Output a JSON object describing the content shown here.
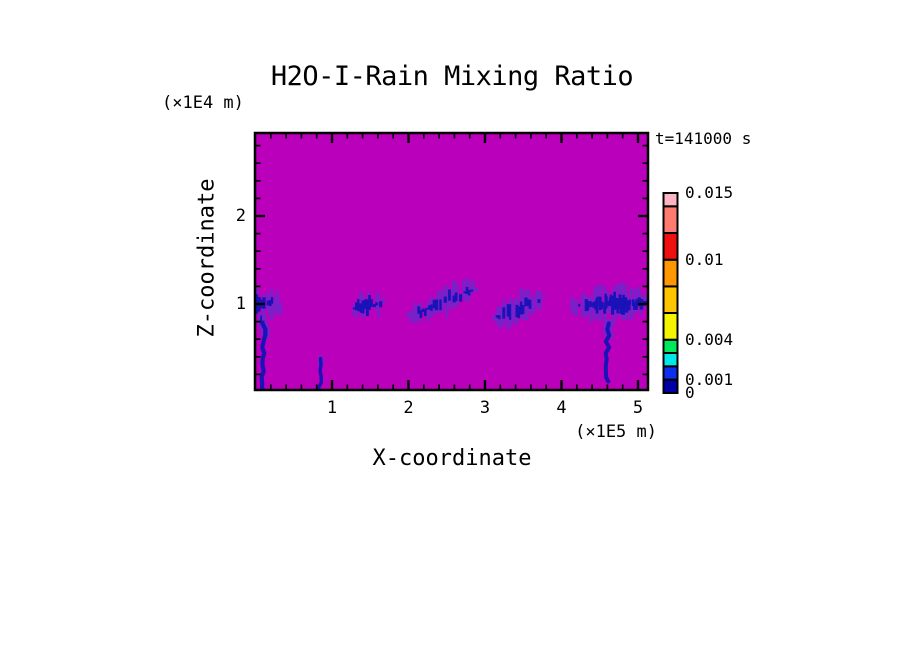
{
  "chart_data": {
    "type": "heatmap",
    "title": "H2O-I-Rain Mixing Ratio",
    "time": "t=141000 s",
    "xlabel": "X-coordinate",
    "x_unit": "(×1E5 m)",
    "zlabel": "Z-coordinate",
    "z_unit": "(×1E4 m)",
    "x_range": [
      0,
      5.13
    ],
    "z_range": [
      0.02,
      2.94
    ],
    "x_major_ticks": [
      1,
      2,
      3,
      4,
      5
    ],
    "x_minor_step": 0.2,
    "z_major_ticks": [
      1,
      2
    ],
    "z_minor_step": 0.2,
    "grid": false,
    "background_color": "#BB00BB",
    "palette": {
      "fringe": "#7B20C8",
      "core": "#1A12B8"
    },
    "colorbar": {
      "position": "right",
      "vmin": 0,
      "vmax": 0.015,
      "segments": [
        {
          "from": 0,
          "to": 0.001,
          "color": "#0000A8"
        },
        {
          "from": 0.001,
          "to": 0.002,
          "color": "#0C2FF0"
        },
        {
          "from": 0.002,
          "to": 0.003,
          "color": "#00E8E8"
        },
        {
          "from": 0.003,
          "to": 0.004,
          "color": "#00E85C"
        },
        {
          "from": 0.004,
          "to": 0.006,
          "color": "#F4F400"
        },
        {
          "from": 0.006,
          "to": 0.008,
          "color": "#FFC400"
        },
        {
          "from": 0.008,
          "to": 0.01,
          "color": "#FF9800"
        },
        {
          "from": 0.01,
          "to": 0.012,
          "color": "#F01010"
        },
        {
          "from": 0.012,
          "to": 0.014,
          "color": "#FF7B70"
        },
        {
          "from": 0.014,
          "to": 0.015,
          "color": "#FFB4C4"
        }
      ],
      "labels": [
        {
          "text": "0.015",
          "value": 0.015
        },
        {
          "text": "0.01",
          "value": 0.01
        },
        {
          "text": "0.004",
          "value": 0.004
        },
        {
          "text": "0.001",
          "value": 0.001
        },
        {
          "text": "0",
          "value": 0
        }
      ]
    },
    "features": [
      {
        "name": "rain-cell-1",
        "cx": 0.12,
        "cz": 1.0,
        "rx": 0.2,
        "rz": 0.22,
        "slope": 0,
        "seed": 11,
        "density": 2,
        "core_shift": -5,
        "streak": {
          "x": 0.105,
          "z_top": 0.85,
          "z_bottom": 0.02,
          "core_width": 4.2,
          "fringe_width": 9,
          "fringe_frac": 0.3,
          "seed": 21
        }
      },
      {
        "name": "rain-cell-2-shaft",
        "cx": 0.84,
        "cz": 0.2,
        "rx": 0,
        "rz": 0,
        "slope": 0,
        "seed": 12,
        "density": 0,
        "core_shift": 0,
        "streak": {
          "x": 0.84,
          "z_top": 0.38,
          "z_bottom": 0.02,
          "core_width": 3.4,
          "fringe_width": 6,
          "fringe_frac": 0.2,
          "seed": 22
        }
      },
      {
        "name": "rain-cell-3",
        "cx": 1.45,
        "cz": 0.98,
        "rx": 0.21,
        "rz": 0.2,
        "slope": -0.15,
        "seed": 13,
        "density": 2,
        "core_shift": 0
      },
      {
        "name": "rain-cell-4",
        "cx": 2.42,
        "cz": 1.02,
        "rx": 0.46,
        "rz": 0.17,
        "slope": -0.42,
        "seed": 14,
        "density": 1,
        "core_shift": 0
      },
      {
        "name": "rain-cell-5",
        "cx": 3.42,
        "cz": 0.95,
        "rx": 0.33,
        "rz": 0.2,
        "slope": -0.38,
        "seed": 15,
        "density": 1,
        "core_shift": 0
      },
      {
        "name": "rain-cell-6",
        "cx": 4.58,
        "cz": 1.0,
        "rx": 0.52,
        "rz": 0.22,
        "slope": -0.05,
        "seed": 16,
        "density": 2,
        "core_shift": 6,
        "streak": {
          "x": 4.6,
          "z_top": 0.78,
          "z_bottom": 0.12,
          "core_width": 4.0,
          "fringe_width": 9,
          "fringe_frac": 0.35,
          "seed": 26
        }
      }
    ]
  }
}
